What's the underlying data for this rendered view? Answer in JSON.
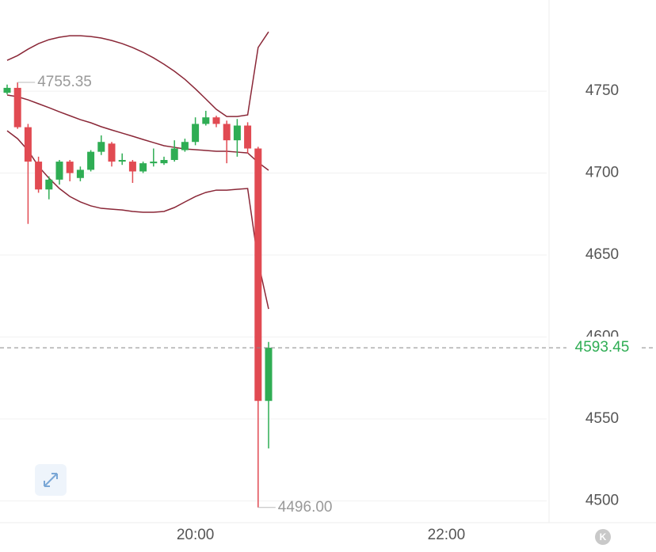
{
  "chart_data": {
    "type": "candlestick",
    "categories": [
      null,
      null,
      null,
      null,
      null,
      null,
      null,
      null,
      null,
      null,
      null,
      null,
      null,
      null,
      null,
      null,
      null,
      null,
      "20:00",
      null,
      null,
      null,
      null,
      null,
      null,
      null,
      null,
      null,
      null,
      null,
      null,
      null,
      null,
      null,
      null,
      null,
      null,
      null,
      null,
      null,
      null,
      null,
      "22:00",
      null,
      null,
      null,
      null,
      null,
      null,
      null,
      null,
      null
    ],
    "open": [
      4749,
      4752,
      4728,
      4707,
      4690,
      4696,
      4707,
      4697,
      4702,
      4713,
      4718,
      4707,
      4707,
      4701,
      4706,
      4706,
      4708,
      4714,
      4719,
      4730,
      4734,
      4730,
      4720,
      4729,
      4715,
      4561,
      null,
      null,
      null,
      null,
      null,
      null,
      null,
      null,
      null,
      null,
      null,
      null,
      null,
      null,
      null,
      null,
      null,
      null,
      null,
      null,
      null,
      null,
      null,
      null,
      null,
      null
    ],
    "high": [
      4754,
      4755.35,
      4730,
      4710,
      4698,
      4708,
      4708,
      4704,
      4714,
      4723,
      4719,
      4712,
      4708,
      4707,
      4715,
      4710,
      4720,
      4721,
      4734,
      4738,
      4735,
      4732,
      4733,
      4731,
      4716,
      4597,
      null,
      null,
      null,
      null,
      null,
      null,
      null,
      null,
      null,
      null,
      null,
      null,
      null,
      null,
      null,
      null,
      null,
      null,
      null,
      null,
      null,
      null,
      null,
      null,
      null,
      null
    ],
    "low": [
      4748,
      4727,
      4669,
      4688,
      4684,
      4693,
      4695,
      4695,
      4701,
      4711,
      4704,
      4705,
      4694,
      4700,
      4704,
      4705,
      4707,
      4713,
      4717,
      4729,
      4728,
      4706,
      4710,
      4712,
      4496,
      4532,
      null,
      null,
      null,
      null,
      null,
      null,
      null,
      null,
      null,
      null,
      null,
      null,
      null,
      null,
      null,
      null,
      null,
      null,
      null,
      null,
      null,
      null,
      null,
      null,
      null,
      null
    ],
    "close": [
      4752,
      4728,
      4707,
      4690,
      4696,
      4707,
      4700,
      4702,
      4713,
      4719,
      4707,
      4708,
      4701,
      4706,
      4707,
      4708,
      4715,
      4719,
      4730,
      4734,
      4730,
      4720,
      4729,
      4715,
      4561,
      4593.45,
      null,
      null,
      null,
      null,
      null,
      null,
      null,
      null,
      null,
      null,
      null,
      null,
      null,
      null,
      null,
      null,
      null,
      null,
      null,
      null,
      null,
      null,
      null,
      null,
      null,
      null
    ],
    "bands": [
      {
        "values": [
          4768.8,
          4771.7,
          4775.6,
          4779,
          4781.4,
          4782.9,
          4783.8,
          4783.8,
          4783.3,
          4782.4,
          4780.9,
          4779,
          4776.6,
          4773.7,
          4770.3,
          4766.4,
          4762.1,
          4757.2,
          4751.4,
          4745.2,
          4738.9,
          4734.5,
          4734.5,
          4735.5,
          4776.6,
          4786.2,
          null,
          null,
          null,
          null,
          null,
          null,
          null,
          null,
          null,
          null,
          null,
          null,
          null,
          null,
          null,
          null,
          null,
          null,
          null,
          null,
          null,
          null,
          null,
          null,
          null,
          null
        ]
      },
      {
        "values": [
          4747.6,
          4746.6,
          4744.7,
          4742.3,
          4739.9,
          4737.4,
          4735,
          4732.6,
          4730.7,
          4728.3,
          4726.3,
          4724.4,
          4722.5,
          4720.5,
          4718.6,
          4716.7,
          4715.7,
          4714.7,
          4714.3,
          4713.8,
          4713.3,
          4713.3,
          4712.8,
          4712.3,
          4706.5,
          4701.7,
          null,
          null,
          null,
          null,
          null,
          null,
          null,
          null,
          null,
          null,
          null,
          null,
          null,
          null,
          null,
          null,
          null,
          null,
          null,
          null,
          null,
          null,
          null,
          null,
          null,
          null
        ]
      },
      {
        "values": [
          4725.8,
          4721,
          4713.8,
          4704.1,
          4696.9,
          4690.6,
          4685.7,
          4682.4,
          4680,
          4678.5,
          4678,
          4677.5,
          4676.6,
          4676.1,
          4676.1,
          4676.6,
          4679,
          4682.4,
          4685.7,
          4688.2,
          4689.6,
          4689.6,
          4690.1,
          4690.6,
          4646.1,
          4617.1,
          null,
          null,
          null,
          null,
          null,
          null,
          null,
          null,
          null,
          null,
          null,
          null,
          null,
          null,
          null,
          null,
          null,
          null,
          null,
          null,
          null,
          null,
          null,
          null,
          null,
          null
        ]
      }
    ],
    "up_color": "#2fad54",
    "down_color": "#e14a52",
    "band_color": "#8a2737",
    "ylim": [
      4486.7,
      4805.6
    ],
    "yticks": [
      4500,
      4550,
      4600,
      4650,
      4700,
      4750
    ],
    "grid": true,
    "annotations": [
      {
        "value": 4755.35,
        "label": "4755.35",
        "index": 1
      },
      {
        "value": 4496,
        "label": "4496.00",
        "index": 24
      }
    ],
    "last_price": {
      "value": 4593.45,
      "label": "4593.45"
    },
    "badge": "K"
  }
}
